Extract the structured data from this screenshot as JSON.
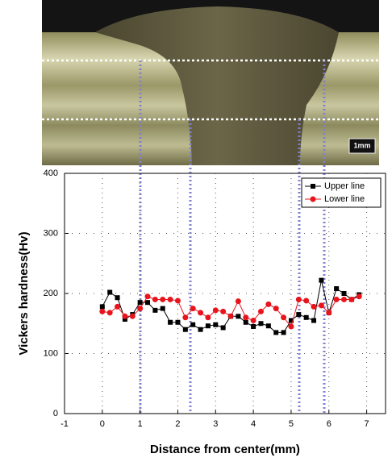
{
  "image_label": "1mm",
  "chart_data": {
    "type": "line",
    "x_label": "Distance from center(mm)",
    "y_label": "Vickers hardness(Hv)",
    "x": [
      0,
      0.2,
      0.4,
      0.6,
      0.8,
      1.0,
      1.2,
      1.4,
      1.6,
      1.8,
      2.0,
      2.2,
      2.4,
      2.6,
      2.8,
      3.0,
      3.2,
      3.4,
      3.6,
      3.8,
      4.0,
      4.2,
      4.4,
      4.6,
      4.8,
      5.0,
      5.2,
      5.4,
      5.6,
      5.8,
      6.0,
      6.2,
      6.4,
      6.6,
      6.8
    ],
    "series": [
      {
        "name": "Upper line",
        "color": "#000000",
        "marker": "square",
        "values": [
          178,
          202,
          193,
          157,
          165,
          185,
          185,
          172,
          175,
          152,
          152,
          140,
          148,
          140,
          146,
          148,
          143,
          162,
          162,
          152,
          145,
          150,
          146,
          135,
          135,
          155,
          165,
          160,
          155,
          222,
          168,
          208,
          200,
          190,
          198
        ]
      },
      {
        "name": "Lower line",
        "color": "#e8141c",
        "marker": "circle",
        "values": [
          170,
          168,
          178,
          162,
          162,
          175,
          195,
          190,
          190,
          190,
          188,
          160,
          175,
          168,
          160,
          172,
          170,
          162,
          187,
          160,
          155,
          170,
          182,
          175,
          160,
          145,
          190,
          188,
          178,
          180,
          168,
          190,
          190,
          190,
          195
        ]
      }
    ],
    "xlim": [
      -1,
      7.5
    ],
    "xticks": [
      -1,
      0,
      1,
      2,
      3,
      4,
      5,
      6,
      7
    ],
    "ylim": [
      0,
      400
    ],
    "yticks": [
      0,
      100,
      200,
      300,
      400
    ],
    "grid": true,
    "legend": "upper right"
  }
}
